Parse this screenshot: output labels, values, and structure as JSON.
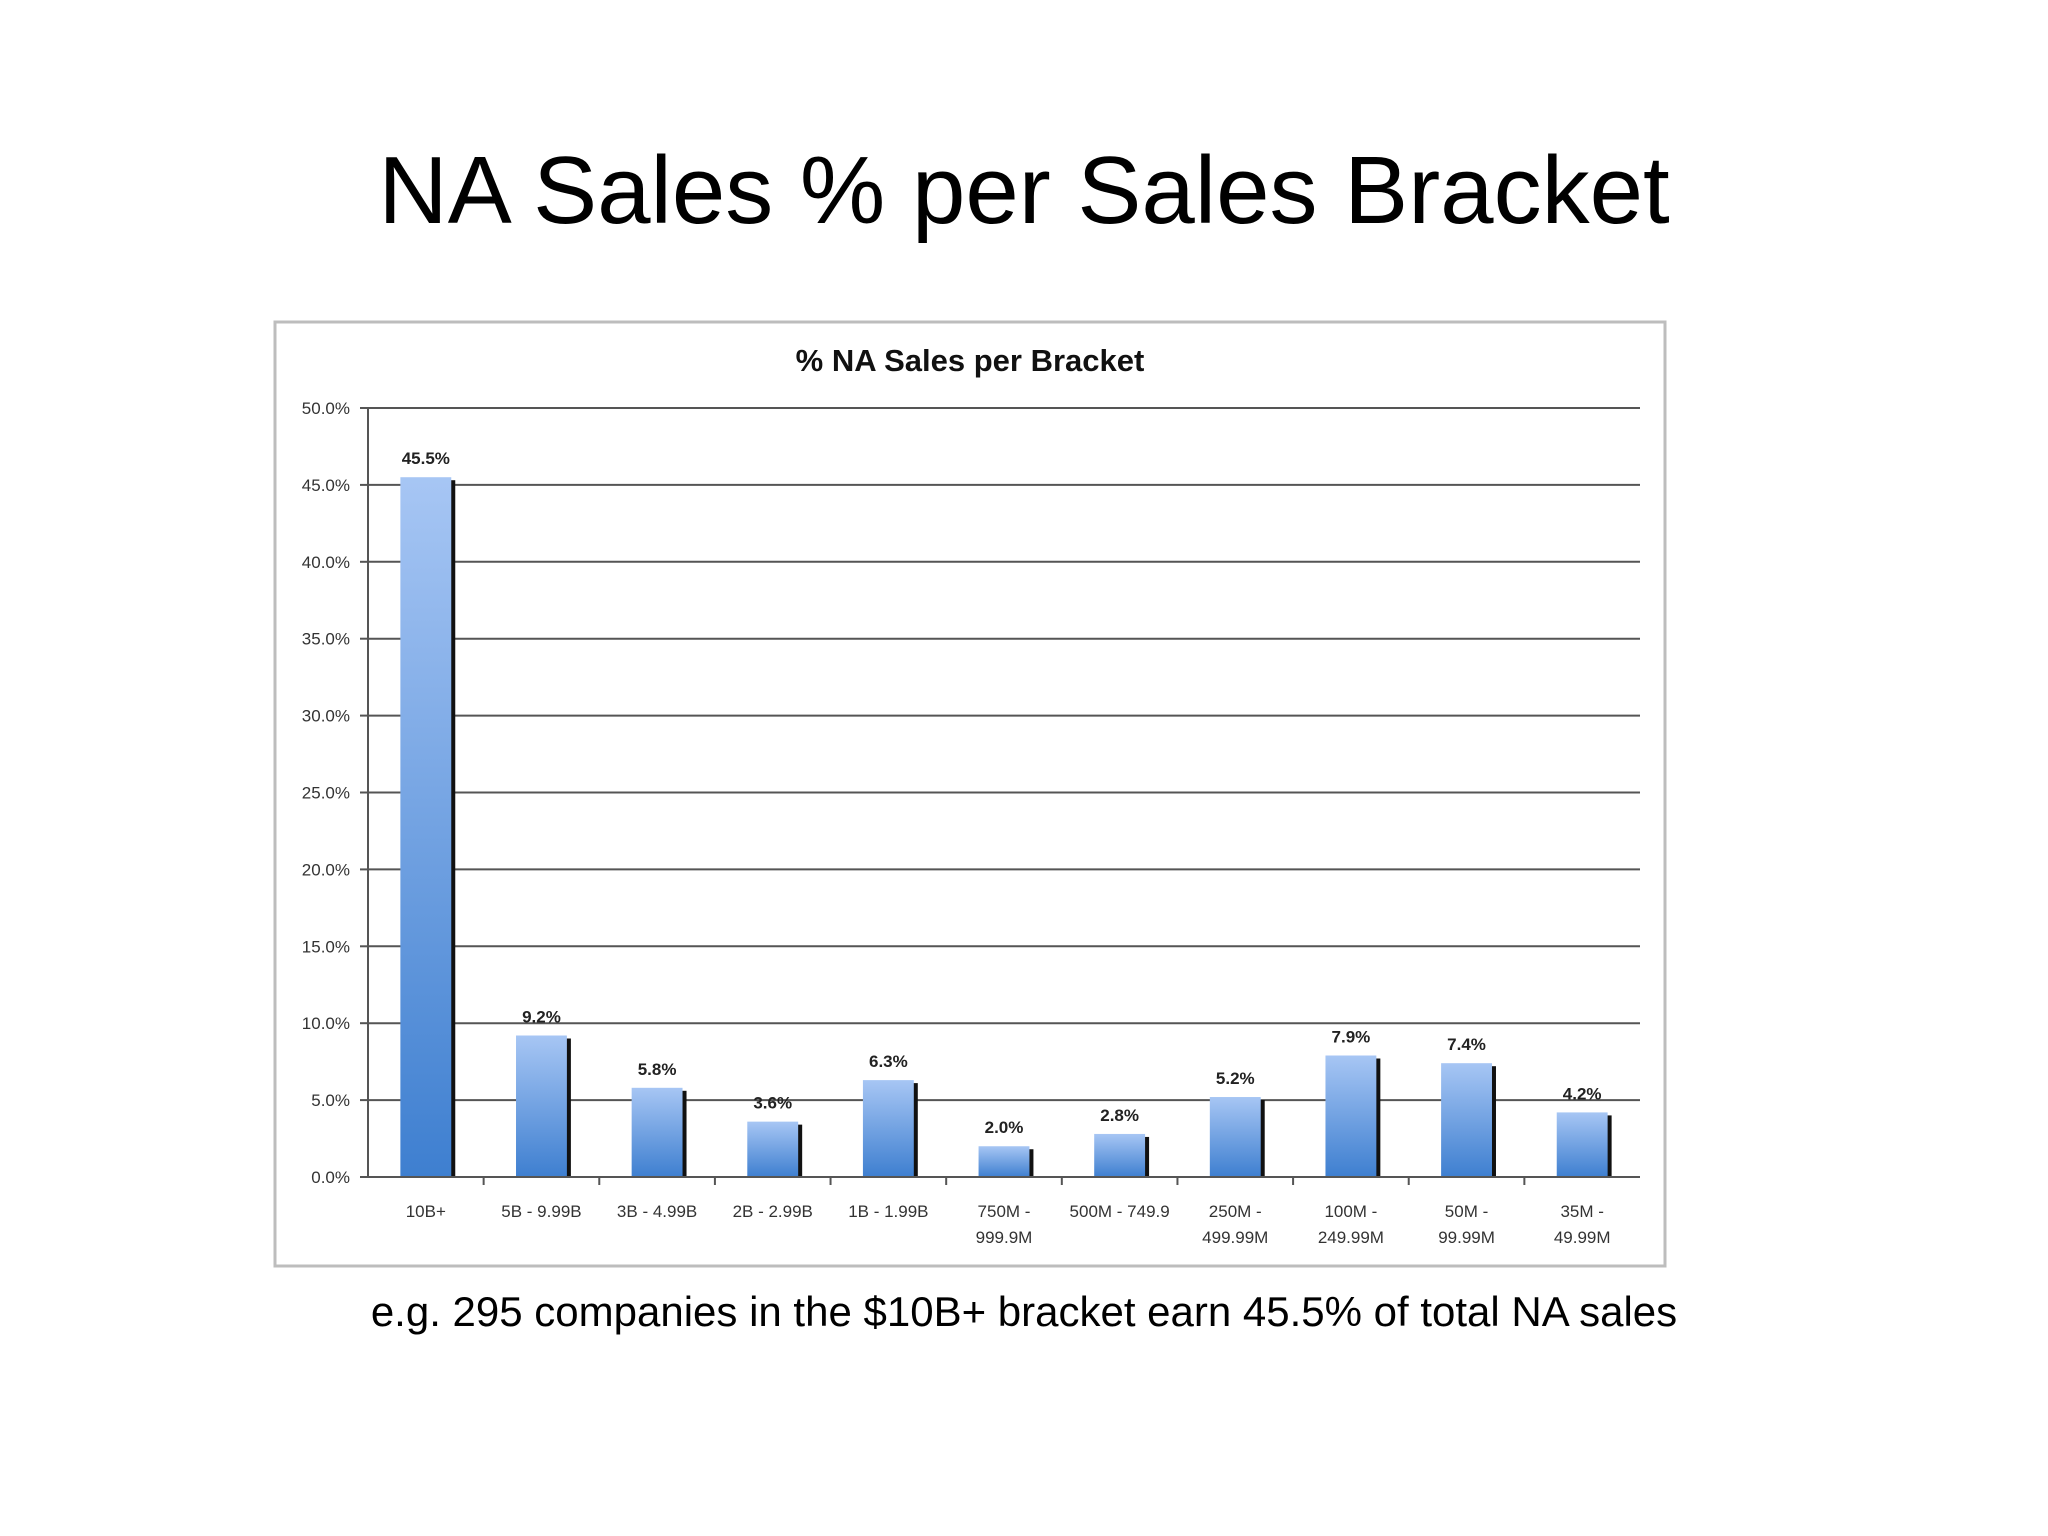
{
  "slide": {
    "title": "NA Sales % per Sales Bracket",
    "caption": "e.g. 295 companies in the $10B+ bracket earn 45.5% of total NA sales"
  },
  "colors": {
    "bar_top": "#a7c6f4",
    "bar_bottom": "#3e7fd0",
    "bar_shadow": "#111111",
    "grid": "#555555",
    "frame": "#bdbdbd"
  },
  "chart_data": {
    "type": "bar",
    "title": "% NA Sales per Bracket",
    "xlabel": "",
    "ylabel": "",
    "ylim": [
      0,
      50
    ],
    "ytick_step": 5,
    "ytick_labels": [
      "0.0%",
      "5.0%",
      "10.0%",
      "15.0%",
      "20.0%",
      "25.0%",
      "30.0%",
      "35.0%",
      "40.0%",
      "45.0%",
      "50.0%"
    ],
    "grid": true,
    "legend": "none",
    "categories": [
      [
        "10B+"
      ],
      [
        "5B  - 9.99B"
      ],
      [
        "3B - 4.99B"
      ],
      [
        "2B - 2.99B"
      ],
      [
        "1B - 1.99B"
      ],
      [
        "750M -",
        "999.9M"
      ],
      [
        "500M - 749.9"
      ],
      [
        "250M -",
        "499.99M"
      ],
      [
        "100M -",
        "249.99M"
      ],
      [
        "50M -",
        "99.99M"
      ],
      [
        "35M -",
        "49.99M"
      ]
    ],
    "values": [
      45.5,
      9.2,
      5.8,
      3.6,
      6.3,
      2.0,
      2.8,
      5.2,
      7.9,
      7.4,
      4.2
    ],
    "data_labels": [
      "45.5%",
      "9.2%",
      "5.8%",
      "3.6%",
      "6.3%",
      "2.0%",
      "2.8%",
      "5.2%",
      "7.9%",
      "7.4%",
      "4.2%"
    ]
  }
}
